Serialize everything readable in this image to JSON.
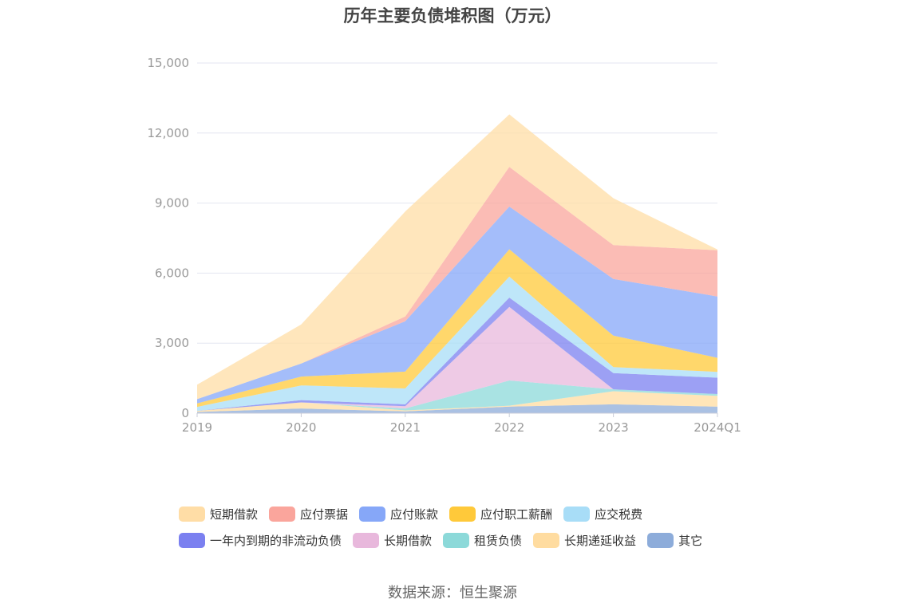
{
  "chart_data": {
    "type": "area",
    "stacked": true,
    "title": "历年主要负债堆积图（万元）",
    "categories": [
      "2019",
      "2020",
      "2021",
      "2022",
      "2023",
      "2024Q1"
    ],
    "ylim": [
      0,
      15000
    ],
    "yticks": [
      "0",
      "3,000",
      "6,000",
      "9,000",
      "12,000",
      "15,000"
    ],
    "grid": true,
    "legend_position": "bottom",
    "series": [
      {
        "name": "其它",
        "color": "#8DACDA",
        "values": [
          50,
          200,
          80,
          280,
          380,
          280
        ]
      },
      {
        "name": "长期递延收益",
        "color": "#FFDCA0",
        "values": [
          50,
          260,
          40,
          40,
          560,
          460
        ]
      },
      {
        "name": "租赁负债",
        "color": "#8CD9D9",
        "values": [
          0,
          0,
          80,
          1080,
          80,
          80
        ]
      },
      {
        "name": "长期借款",
        "color": "#E8B8DC",
        "values": [
          0,
          0,
          100,
          3150,
          0,
          0
        ]
      },
      {
        "name": "一年内到期的非流动负债",
        "color": "#7B80F0",
        "values": [
          0,
          100,
          80,
          400,
          700,
          700
        ]
      },
      {
        "name": "应交税费",
        "color": "#A8DDF7",
        "values": [
          170,
          630,
          680,
          900,
          250,
          250
        ]
      },
      {
        "name": "应付职工薪酬",
        "color": "#FFC93A",
        "values": [
          150,
          380,
          720,
          1170,
          1350,
          600
        ]
      },
      {
        "name": "应付账款",
        "color": "#86A7F8",
        "values": [
          180,
          560,
          2160,
          1830,
          2430,
          2630
        ]
      },
      {
        "name": "应付票据",
        "color": "#FAA59C",
        "values": [
          0,
          0,
          200,
          1700,
          1450,
          1980
        ]
      },
      {
        "name": "短期借款",
        "color": "#FFDDA6",
        "values": [
          620,
          1670,
          4500,
          2250,
          2010,
          30
        ]
      }
    ],
    "legend_order": [
      "短期借款",
      "应付票据",
      "应付账款",
      "应付职工薪酬",
      "应交税费",
      "一年内到期的非流动负债",
      "长期借款",
      "租赁负债",
      "长期递延收益",
      "其它"
    ]
  },
  "source": "数据来源：恒生聚源"
}
